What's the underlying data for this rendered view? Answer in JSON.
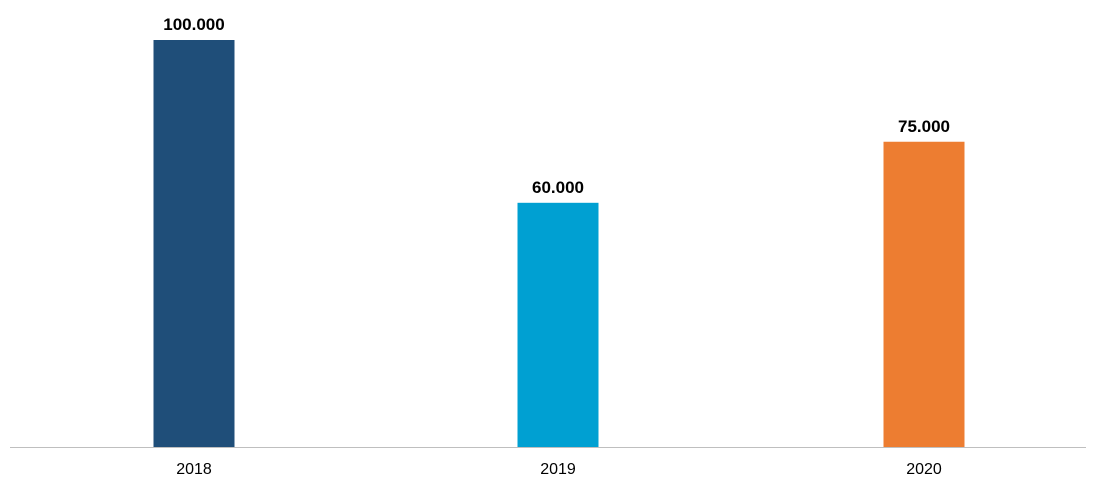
{
  "chart_data": {
    "type": "bar",
    "categories": [
      "2018",
      "2019",
      "2020"
    ],
    "values": [
      100000,
      60000,
      75000
    ],
    "value_labels": [
      "100.000",
      "60.000",
      "75.000"
    ],
    "colors": [
      "#1f4e79",
      "#00a0d2",
      "#ed7d31"
    ],
    "axis_color": "#bfbfbf",
    "title": "",
    "xlabel": "",
    "ylabel": "",
    "ylim": [
      0,
      100000
    ],
    "grid": false,
    "legend": "none"
  }
}
